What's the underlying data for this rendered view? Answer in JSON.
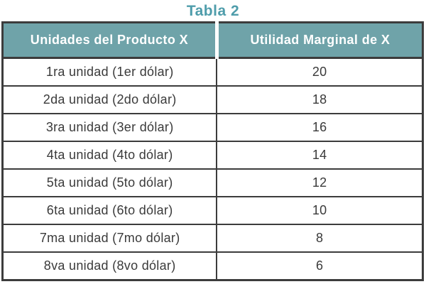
{
  "title": "Tabla 2",
  "colors": {
    "title_text": "#4f9dab",
    "header_background": "#6fa3a9",
    "header_text": "#ffffff",
    "table_border": "#3c3c3c",
    "cell_text": "#3a3a3a",
    "page_background": "#ffffff"
  },
  "chart_data": {
    "type": "table",
    "title": "Tabla 2",
    "columns": [
      "Unidades del Producto X",
      "Utilidad Marginal de X"
    ],
    "rows": [
      [
        "1ra unidad (1er dólar)",
        "20"
      ],
      [
        "2da unidad (2do dólar)",
        "18"
      ],
      [
        "3ra unidad (3er dólar)",
        "16"
      ],
      [
        "4ta unidad (4to dólar)",
        "14"
      ],
      [
        "5ta unidad (5to dólar)",
        "12"
      ],
      [
        "6ta unidad (6to dólar)",
        "10"
      ],
      [
        "7ma unidad (7mo dólar)",
        "8"
      ],
      [
        "8va unidad (8vo dólar)",
        "6"
      ]
    ]
  }
}
